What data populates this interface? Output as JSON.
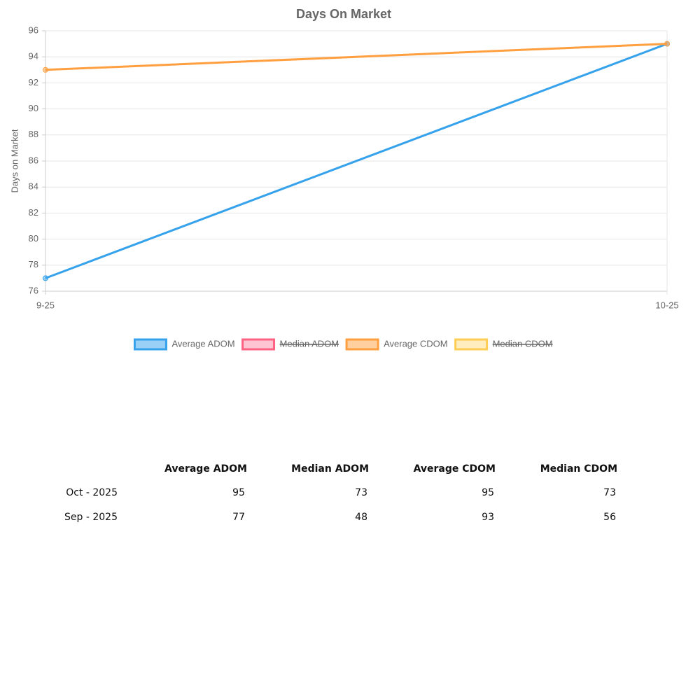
{
  "chart_data": {
    "type": "line",
    "title": "Days On Market",
    "y_label": "Days on Market",
    "categories": [
      "9-25",
      "10-25"
    ],
    "series": [
      {
        "name": "Average ADOM",
        "color": "#36a2eb",
        "values": [
          77,
          95
        ]
      },
      {
        "name": "Median ADOM",
        "color": "#ff6384",
        "hidden": true
      },
      {
        "name": "Average CDOM",
        "color": "#ff9f40",
        "values": [
          93,
          95
        ]
      },
      {
        "name": "Median CDOM",
        "color": "#ffcd56",
        "hidden": true
      }
    ],
    "ylim": [
      76,
      96
    ],
    "yticks": [
      76,
      78,
      80,
      82,
      84,
      86,
      88,
      90,
      92,
      94,
      96
    ],
    "grid": true,
    "legend": "bottom"
  },
  "table": {
    "columns": [
      "Average ADOM",
      "Median ADOM",
      "Average CDOM",
      "Median CDOM"
    ],
    "rows": [
      {
        "label": "Oct - 2025",
        "values": [
          95,
          73,
          95,
          73
        ]
      },
      {
        "label": "Sep - 2025",
        "values": [
          77,
          48,
          93,
          56
        ]
      }
    ]
  }
}
